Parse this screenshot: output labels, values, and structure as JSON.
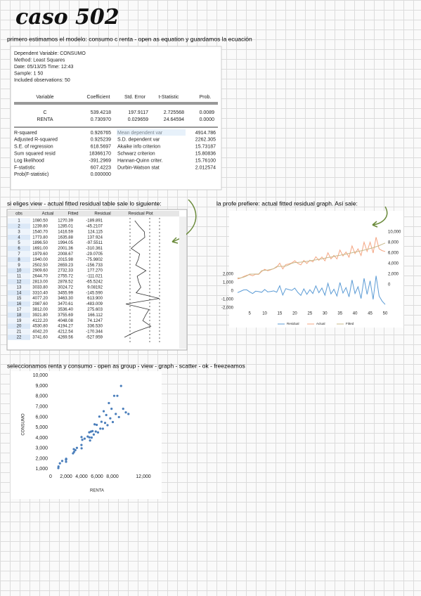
{
  "title": "caso 502",
  "notes": [
    "primero estimamos el modelo: consumo c renta - open as equation y guardamos la ecuación",
    "si eliges view - actual fitted residual table sale lo siguiente:",
    "la profe prefiere: actual fitted residual graph. Así sale:",
    "seleccionamos renta y consumo - open as group - view - graph - scatter - ok - freezeamos"
  ],
  "regression": {
    "header": [
      "Dependent Variable: CONSUMO",
      "Method: Least Squares",
      "Date: 05/13/25   Time: 12:43",
      "Sample: 1 50",
      "Included observations: 50"
    ],
    "columns": [
      "Variable",
      "Coefficient",
      "Std. Error",
      "t-Statistic",
      "Prob."
    ],
    "rows": [
      [
        "C",
        "539.4218",
        "197.9117",
        "2.725568",
        "0.0089"
      ],
      [
        "RENTA",
        "0.730970",
        "0.029659",
        "24.64594",
        "0.0000"
      ]
    ],
    "stats": [
      [
        "R-squared",
        "0.926765",
        "Mean dependent var",
        "4914.786"
      ],
      [
        "Adjusted R-squared",
        "0.925239",
        "S.D. dependent var",
        "2262.305"
      ],
      [
        "S.E. of regression",
        "618.5697",
        "Akaike info criterion",
        "15.73187"
      ],
      [
        "Sum squared resid",
        "18366170",
        "Schwarz criterion",
        "15.80836"
      ],
      [
        "Log likelihood",
        "-391.2969",
        "Hannan-Quinn criter.",
        "15.76100"
      ],
      [
        "F-statistic",
        "607.4223",
        "Durbin-Watson stat",
        "2.012574"
      ],
      [
        "Prob(F-statistic)",
        "0.000000"
      ]
    ]
  },
  "residual_table": {
    "columns": [
      "obs",
      "Actual",
      "Fitted",
      "Residual",
      "Residual Plot"
    ],
    "rows": [
      [
        "1",
        "1080.50",
        "1270.39",
        "-189.891"
      ],
      [
        "2",
        "1239.80",
        "1285.01",
        "-45.2107"
      ],
      [
        "3",
        "1540.70",
        "1416.59",
        "124.115"
      ],
      [
        "4",
        "1773.80",
        "1635.88",
        "137.924"
      ],
      [
        "5",
        "1896.50",
        "1994.05",
        "-97.5511"
      ],
      [
        "6",
        "1691.00",
        "2001.36",
        "-310.361"
      ],
      [
        "7",
        "1979.60",
        "2008.67",
        "-29.0705"
      ],
      [
        "8",
        "1940.00",
        "2015.98",
        "-75.9802"
      ],
      [
        "9",
        "2502.50",
        "2659.23",
        "-156.733"
      ],
      [
        "10",
        "2909.60",
        "2732.33",
        "177.270"
      ],
      [
        "11",
        "2644.70",
        "2755.72",
        "-111.021"
      ],
      [
        "12",
        "2813.00",
        "2878.52",
        "-65.5242"
      ],
      [
        "13",
        "3033.80",
        "3024.72",
        "9.08192"
      ],
      [
        "14",
        "3310.40",
        "3455.99",
        "-145.590"
      ],
      [
        "15",
        "4077.20",
        "3463.30",
        "613.900"
      ],
      [
        "16",
        "2987.60",
        "3470.61",
        "-483.009"
      ],
      [
        "17",
        "3812.00",
        "3536.40",
        "275.603"
      ],
      [
        "18",
        "3921.80",
        "3755.69",
        "166.112"
      ],
      [
        "19",
        "4122.20",
        "4048.08",
        "74.1247"
      ],
      [
        "20",
        "4530.80",
        "4194.27",
        "336.530"
      ],
      [
        "21",
        "4042.20",
        "4212.54",
        "-170.344"
      ],
      [
        "22",
        "3741.60",
        "4269.56",
        "-527.959"
      ]
    ]
  },
  "chart_data": [
    {
      "type": "line",
      "x": [
        1,
        2,
        3,
        4,
        5,
        6,
        7,
        8,
        9,
        10,
        11,
        12,
        13,
        14,
        15,
        16,
        17,
        18,
        19,
        20,
        21,
        22,
        23,
        24,
        25,
        26,
        27,
        28,
        29,
        30,
        31,
        32,
        33,
        34,
        35,
        36,
        37,
        38,
        39,
        40,
        41,
        42,
        43,
        44,
        45,
        46,
        47,
        48,
        49,
        50
      ],
      "xlim": [
        1,
        50
      ],
      "xticks": [
        5,
        10,
        15,
        20,
        25,
        30,
        35,
        40,
        45,
        50
      ],
      "ylim": [
        -2000,
        8000
      ],
      "yticks": [
        {
          "value": -2000,
          "label": "-2,000"
        },
        {
          "value": -1000,
          "label": "-1,000"
        },
        0,
        {
          "value": 1000,
          "label": "1,000"
        },
        {
          "value": 2000,
          "label": "2,000"
        }
      ],
      "y2lim": [
        -4400,
        11600
      ],
      "y2ticks": [
        0,
        {
          "value": 2000,
          "label": "2,000"
        },
        {
          "value": 4000,
          "label": "4,000"
        },
        {
          "value": 6000,
          "label": "6,000"
        },
        {
          "value": 8000,
          "label": "8,000"
        },
        {
          "value": 10000,
          "label": "10,000"
        }
      ],
      "series": [
        {
          "name": "Residual",
          "color": "#5b9bd5",
          "axis": "y",
          "values": [
            -189.891,
            -45.2107,
            124.115,
            137.924,
            -97.5511,
            -310.361,
            -29.0705,
            -75.9802,
            -156.733,
            177.27,
            -111.021,
            -65.5242,
            9.08192,
            -145.59,
            613.9,
            -483.009,
            275.603,
            166.112,
            74.1247,
            336.53,
            -170.344,
            -527.959,
            250,
            -400,
            150,
            -300,
            600,
            -200,
            350,
            -500,
            900,
            -350,
            200,
            -600,
            1000,
            -250,
            400,
            -700,
            1300,
            -300,
            500,
            -900,
            1500,
            -400,
            1200,
            -1000,
            1800,
            -600,
            -1200,
            -1600
          ]
        },
        {
          "name": "Actual",
          "color": "#f4a582",
          "axis": "y2",
          "values": [
            1080.5,
            1239.8,
            1540.7,
            1773.8,
            1896.5,
            1691,
            1979.6,
            1940,
            2502.5,
            2909.6,
            2644.7,
            2813,
            3033.8,
            3310.4,
            4077.2,
            2987.6,
            3812,
            3921.8,
            4122.2,
            4530.8,
            4042.2,
            3741.6,
            4600,
            4020,
            4650,
            4320,
            5300,
            4610,
            5250,
            4520,
            6050,
            4890,
            5550,
            4880,
            6560,
            5440,
            6200,
            5220,
            7350,
            5880,
            6800,
            5520,
            8050,
            6300,
            8050,
            6000,
            9000,
            6800,
            6450,
            6300
          ]
        },
        {
          "name": "Fitted",
          "color": "#c8b88a",
          "axis": "y2",
          "values": [
            1270.39,
            1285.01,
            1416.59,
            1635.88,
            1994.05,
            2001.36,
            2008.67,
            2015.98,
            2659.23,
            2732.33,
            2755.72,
            2878.52,
            3024.72,
            3455.99,
            3463.3,
            3470.61,
            3536.4,
            3755.69,
            4048.08,
            4194.27,
            4212.54,
            4269.56,
            4350,
            4420,
            4500,
            4620,
            4700,
            4810,
            4900,
            5020,
            5150,
            5240,
            5350,
            5480,
            5560,
            5690,
            5800,
            5920,
            6050,
            6180,
            6300,
            6420,
            6550,
            6700,
            6850,
            7000,
            7200,
            7400,
            7650,
            7900
          ]
        }
      ]
    },
    {
      "type": "scatter",
      "x_label": "RENTA",
      "y_label": "CONSUMO",
      "color": "#4a7ebb",
      "xlim": [
        0,
        12000
      ],
      "xticks": [
        0,
        {
          "value": 2000,
          "label": "2,000"
        },
        {
          "value": 4000,
          "label": "4,000"
        },
        {
          "value": 6000,
          "label": "6,000"
        },
        {
          "value": 8000,
          "label": "8,000"
        },
        {
          "value": 12000,
          "label": "12,000"
        }
      ],
      "ylim": [
        0,
        10500
      ],
      "yticks": [
        {
          "value": 1000,
          "label": "1,000"
        },
        {
          "value": 2000,
          "label": "2,000"
        },
        {
          "value": 3000,
          "label": "3,000"
        },
        {
          "value": 4000,
          "label": "4,000"
        },
        {
          "value": 5000,
          "label": "5,000"
        },
        {
          "value": 6000,
          "label": "6,000"
        },
        {
          "value": 7000,
          "label": "7,000"
        },
        {
          "value": 8000,
          "label": "8,000"
        },
        {
          "value": 9000,
          "label": "9,000"
        },
        {
          "value": 10000,
          "label": "10,000"
        }
      ],
      "x": [
        1000,
        1020,
        1200,
        1500,
        1990,
        2000,
        2010,
        2020,
        2900,
        3000,
        3032,
        3200,
        3400,
        3990,
        4000,
        4010,
        4100,
        4400,
        4800,
        5000,
        5025,
        5103,
        5213,
        5309,
        5418,
        5582,
        5692,
        5842,
        5966,
        6130,
        6308,
        6431,
        6581,
        6759,
        6869,
        7047,
        7197,
        7361,
        7539,
        7717,
        7881,
        8045,
        8223,
        8428,
        8633,
        8839,
        9112,
        9386,
        9728,
        10070
      ],
      "values": [
        1080.5,
        1239.8,
        1540.7,
        1773.8,
        1896.5,
        1691,
        1979.6,
        1940,
        2502.5,
        2909.6,
        2644.7,
        2813,
        3033.8,
        3310.4,
        4077.2,
        2987.6,
        3812,
        3921.8,
        4122.2,
        4530.8,
        4042.2,
        3741.6,
        4600,
        4020,
        4650,
        4320,
        5300,
        4610,
        5250,
        4520,
        6050,
        4890,
        5550,
        4880,
        6560,
        5440,
        6200,
        5220,
        7350,
        5880,
        6800,
        5520,
        8050,
        6300,
        8050,
        6000,
        9000,
        6800,
        6450,
        6300
      ]
    }
  ]
}
